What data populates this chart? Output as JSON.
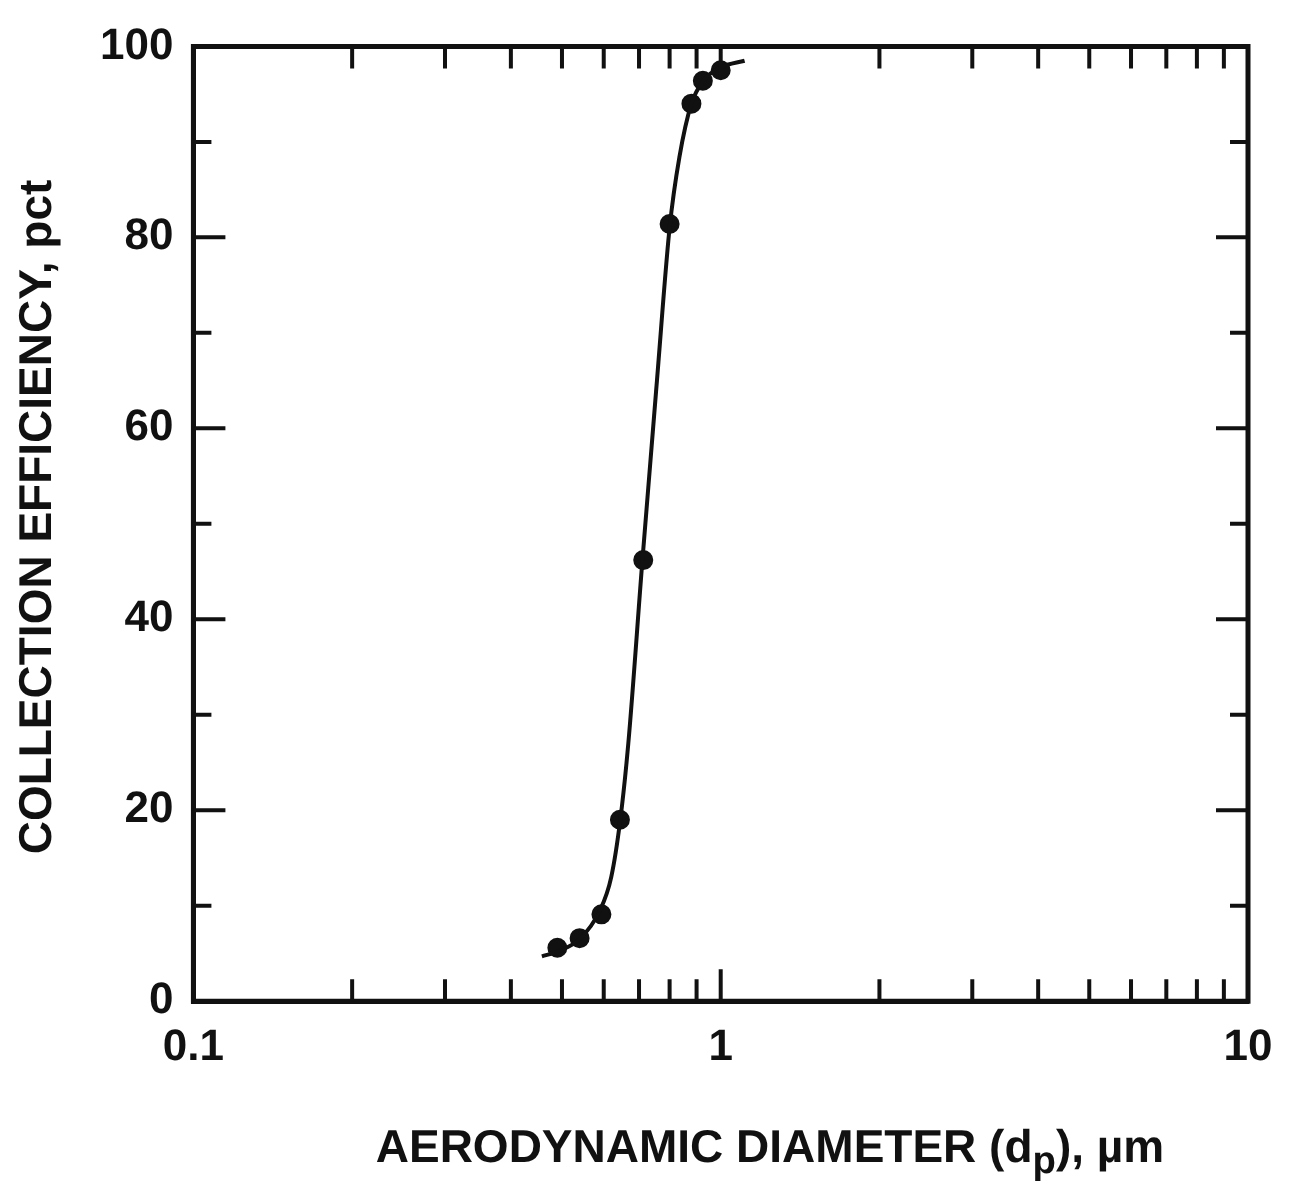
{
  "chart_data": {
    "type": "scatter",
    "xlabel": "AERODYNAMIC DIAMETER  (d$_{p}$), µm",
    "ylabel": "COLLECTION EFFICIENCY, pct",
    "log": "x",
    "grid": false,
    "legend": false,
    "marker": "circle",
    "xlim": [
      0.1,
      10
    ],
    "ylim": [
      0,
      100
    ],
    "xticks": [
      0.1,
      {
        "value": 0.2,
        "label": null
      },
      {
        "value": 0.3,
        "label": null
      },
      {
        "value": 0.4,
        "label": null
      },
      {
        "value": 0.5,
        "label": null
      },
      {
        "value": 0.6,
        "label": null
      },
      {
        "value": 0.7,
        "label": null
      },
      {
        "value": 0.8,
        "label": null
      },
      {
        "value": 0.9,
        "label": null
      },
      1,
      {
        "value": 2,
        "label": null
      },
      {
        "value": 3,
        "label": null
      },
      {
        "value": 4,
        "label": null
      },
      {
        "value": 5,
        "label": null
      },
      {
        "value": 6,
        "label": null
      },
      {
        "value": 7,
        "label": null
      },
      {
        "value": 8,
        "label": null
      },
      {
        "value": 9,
        "label": null
      },
      10
    ],
    "yticks": [
      0,
      {
        "value": 10,
        "label": null
      },
      20,
      {
        "value": 30,
        "label": null
      },
      40,
      {
        "value": 50,
        "label": null
      },
      60,
      {
        "value": 70,
        "label": null
      },
      80,
      {
        "value": 90,
        "label": null
      },
      100
    ],
    "series": [
      {
        "type": "line",
        "color": "#111111",
        "marker": "none",
        "line_style": "solid",
        "x": [
          0.458,
          0.49,
          0.54,
          0.59,
          0.62,
          0.645,
          0.668,
          0.71,
          0.757,
          0.8,
          0.835,
          0.88,
          0.93,
          1.0,
          1.11
        ],
        "values": [
          4.7,
          5.2,
          6.5,
          9.5,
          13,
          19,
          27,
          46,
          65,
          81,
          88.4,
          94,
          96.5,
          97.8,
          98.5
        ]
      },
      {
        "type": "scatter",
        "color": "#111111",
        "x": [
          0.49,
          0.54,
          0.594,
          0.644,
          0.713,
          0.8,
          0.88,
          0.925,
          1.0
        ],
        "values": [
          5.6,
          6.6,
          9.1,
          19,
          46.2,
          81.4,
          94,
          96.4,
          97.5
        ]
      }
    ]
  }
}
